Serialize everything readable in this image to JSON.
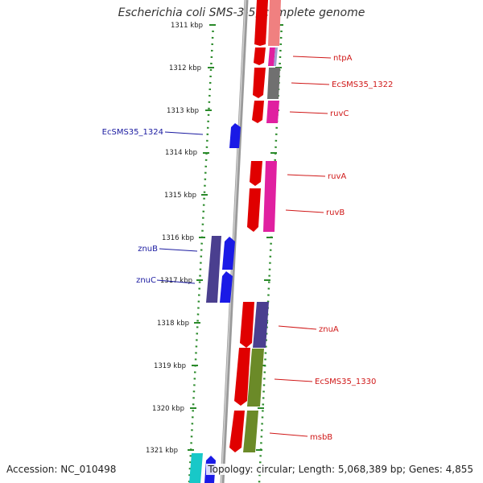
{
  "title": "Escherichia coli SMS-3-5, complete genome",
  "accession_text": "Accession: NC_010498",
  "topology_text": "Topology: circular; Length: 5,068,389 bp; Genes: 4,855",
  "colors": {
    "backbone": "#888888",
    "ruler_dots": "#2a8a2a",
    "left_label": "#1a1aa0",
    "right_label": "#d01818",
    "blue": "#1a1ae6",
    "navy": "#4a3f8f",
    "red": "#e00000",
    "pink": "#f08080",
    "magenta": "#e020a0",
    "gray": "#707070",
    "olive": "#6b8a28",
    "cyan": "#18c8c8"
  },
  "ruler": {
    "labels": [
      "1311 kbp",
      "1312 kbp",
      "1313 kbp",
      "1314 kbp",
      "1315 kbp",
      "1316 kbp",
      "1317 kbp",
      "1318 kbp",
      "1319 kbp",
      "1320 kbp",
      "1321 kbp"
    ]
  },
  "genes_left": [
    {
      "label": "EcSMS35_1324"
    },
    {
      "label": "znuB"
    },
    {
      "label": "znuC"
    }
  ],
  "genes_right": [
    {
      "label": "ntpA"
    },
    {
      "label": "EcSMS35_1322"
    },
    {
      "label": "ruvC"
    },
    {
      "label": "ruvA"
    },
    {
      "label": "ruvB"
    },
    {
      "label": "znuA"
    },
    {
      "label": "EcSMS35_1330"
    },
    {
      "label": "msbB"
    }
  ]
}
